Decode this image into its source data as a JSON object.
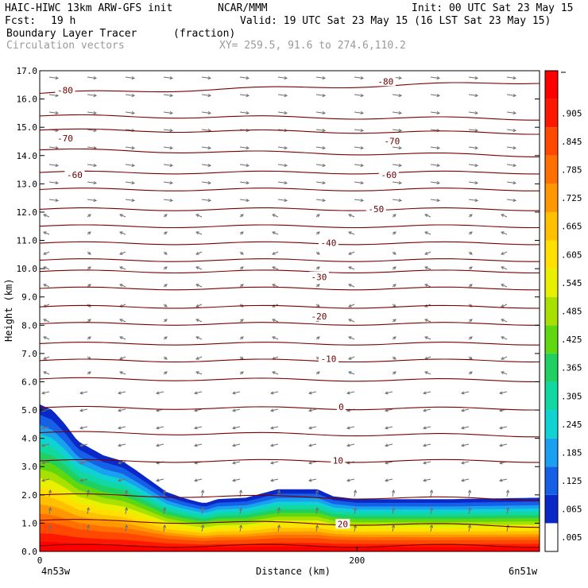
{
  "header": {
    "line1_left": "HAIC-HIWC 13km ARW-GFS init",
    "line1_org": "NCAR/MMM",
    "line1_right": "Init: 00 UTC Sat 23 May 15",
    "fcst_label": "Fcst:",
    "fcst_value": "19 h",
    "valid": "Valid: 19 UTC Sat 23 May 15 (16 LST Sat 23 May 15)",
    "field_name": "Boundary Layer Tracer",
    "field_units": "(fraction)",
    "vector_label": "Circulation vectors",
    "xy_label": "XY= 259.5, 91.6 to 274.6,110.2"
  },
  "chart_data": {
    "type": "heatmap",
    "title": "Boundary Layer Tracer",
    "xlabel": "Distance (km)",
    "ylabel": "Height (km)",
    "xlim": [
      0,
      315
    ],
    "ylim": [
      0,
      17
    ],
    "x_ticks": [
      0,
      200
    ],
    "x_end_labels": {
      "left": "4n53w",
      "right": "6n51w"
    },
    "y_ticks": [
      "0.0",
      "1.0",
      "2.0",
      "3.0",
      "4.0",
      "5.0",
      "6.0",
      "7.0",
      "8.0",
      "9.0",
      "10.0",
      "11.0",
      "12.0",
      "13.0",
      "14.0",
      "15.0",
      "16.0",
      "17.0"
    ],
    "colorbar": {
      "labels": [
        ".005",
        ".065",
        ".125",
        ".185",
        ".245",
        ".305",
        ".365",
        ".425",
        ".485",
        ".545",
        ".605",
        ".665",
        ".725",
        ".785",
        ".845",
        ".905"
      ],
      "colors": [
        "#ffffff",
        "#0a28c8",
        "#1660e8",
        "#1aa0f0",
        "#10d2d2",
        "#10d8a0",
        "#20d060",
        "#60d810",
        "#a8e000",
        "#e8f000",
        "#ffe000",
        "#ffc000",
        "#ff9800",
        "#ff7000",
        "#ff4800",
        "#ff1800",
        "#ff0000"
      ]
    },
    "tracer_top_km": [
      [
        0,
        5.2
      ],
      [
        8,
        5.0
      ],
      [
        16,
        4.5
      ],
      [
        24,
        3.9
      ],
      [
        40,
        3.4
      ],
      [
        52,
        3.2
      ],
      [
        60,
        2.9
      ],
      [
        70,
        2.5
      ],
      [
        80,
        2.1
      ],
      [
        90,
        1.9
      ],
      [
        100,
        1.75
      ],
      [
        104,
        1.7
      ],
      [
        112,
        1.85
      ],
      [
        130,
        1.9
      ],
      [
        140,
        2.05
      ],
      [
        150,
        2.2
      ],
      [
        175,
        2.2
      ],
      [
        185,
        1.95
      ],
      [
        200,
        1.85
      ],
      [
        260,
        1.85
      ],
      [
        315,
        1.9
      ]
    ],
    "contour_line_color": "#7a0000",
    "contours_km_left_right": [
      [
        0.2,
        0.2
      ],
      [
        1.1,
        0.9
      ],
      [
        2.0,
        1.85
      ],
      [
        3.2,
        3.2
      ],
      [
        4.2,
        4.1
      ],
      [
        5.08,
        5.05
      ],
      [
        6.1,
        6.05
      ],
      [
        6.75,
        6.75
      ],
      [
        7.35,
        7.35
      ],
      [
        8.05,
        8.05
      ],
      [
        8.65,
        8.65
      ],
      [
        9.3,
        9.3
      ],
      [
        9.9,
        9.9
      ],
      [
        10.3,
        10.3
      ],
      [
        10.9,
        10.9
      ],
      [
        11.5,
        11.5
      ],
      [
        12.1,
        12.1
      ],
      [
        12.8,
        12.8
      ],
      [
        13.4,
        13.4
      ],
      [
        14.2,
        14.0
      ],
      [
        14.9,
        14.8
      ],
      [
        15.4,
        15.3
      ],
      [
        16.2,
        16.6
      ]
    ],
    "contour_labels": [
      {
        "text": "-80",
        "x": 16,
        "y": 16.3
      },
      {
        "text": "-80",
        "x": 218,
        "y": 16.6
      },
      {
        "text": "-70",
        "x": 16,
        "y": 14.6
      },
      {
        "text": "-70",
        "x": 222,
        "y": 14.5
      },
      {
        "text": "-60",
        "x": 22,
        "y": 13.3
      },
      {
        "text": "-60",
        "x": 220,
        "y": 13.3
      },
      {
        "text": "-50",
        "x": 212,
        "y": 12.1
      },
      {
        "text": "-40",
        "x": 182,
        "y": 10.9
      },
      {
        "text": "-30",
        "x": 176,
        "y": 9.7
      },
      {
        "text": "-20",
        "x": 176,
        "y": 8.3
      },
      {
        "text": "-10",
        "x": 182,
        "y": 6.8
      },
      {
        "text": "0",
        "x": 190,
        "y": 5.1
      },
      {
        "text": "10",
        "x": 188,
        "y": 3.2
      },
      {
        "text": "20",
        "x": 191,
        "y": 0.95
      }
    ]
  }
}
